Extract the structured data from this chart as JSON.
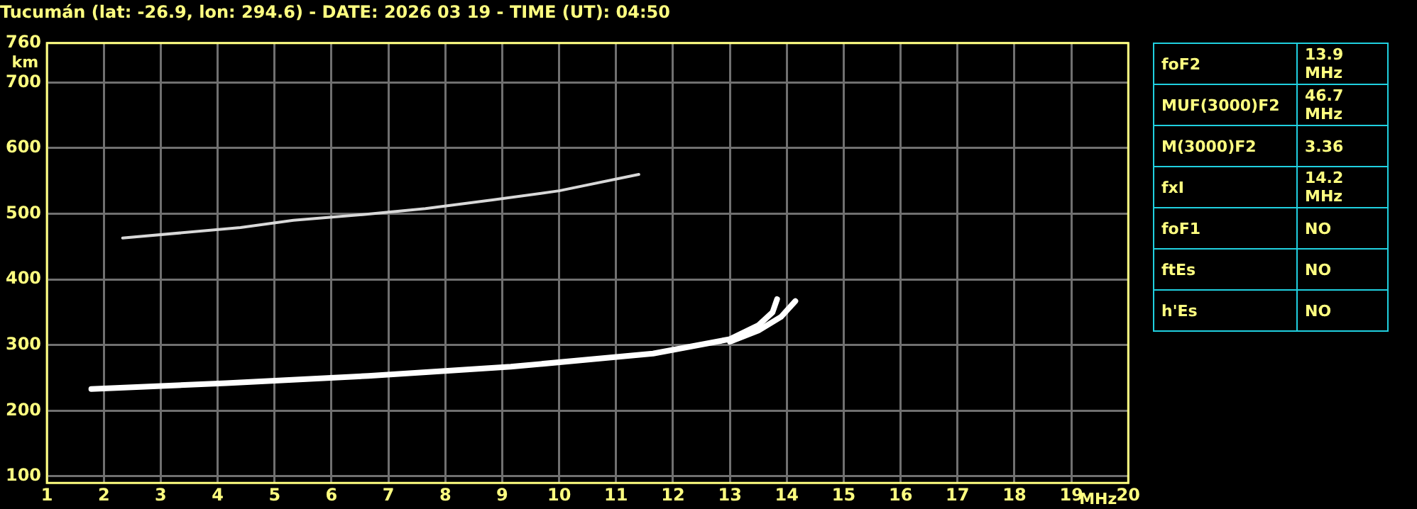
{
  "chart_data": [
    {
      "type": "line",
      "title": "Tucumán (lat: -26.9, lon: 294.6) - DATE: 2026 03 19 - TIME (UT): 04:50",
      "xlabel": "MHz",
      "ylabel": "km",
      "xlim": [
        1,
        20
      ],
      "xticks": [
        1,
        2,
        3,
        4,
        5,
        6,
        7,
        8,
        9,
        10,
        11,
        12,
        13,
        14,
        15,
        16,
        17,
        18,
        19,
        20
      ],
      "ylim": [
        90,
        760
      ],
      "yticks": [
        100,
        200,
        300,
        400,
        500,
        600,
        700,
        760
      ],
      "grid": true,
      "marker": "none",
      "line_style": "solid",
      "series": [
        {
          "color": "#ffffff",
          "x": [
            1.78,
            4.15,
            6.65,
            9.15,
            11.65,
            13.0,
            13.5,
            13.75,
            13.83
          ],
          "values": [
            233,
            242,
            253,
            267,
            287,
            309,
            330,
            350,
            370
          ]
        },
        {
          "color": "#ffffff",
          "x": [
            13.0,
            13.5,
            13.9,
            14.15
          ],
          "values": [
            305,
            322,
            343,
            367
          ]
        },
        {
          "color": "#d8d8d8",
          "x": [
            2.33,
            4.4,
            5.33,
            6.58,
            7.65,
            8.83,
            10.0,
            11.4
          ],
          "values": [
            463,
            479,
            490,
            499,
            508,
            521,
            535,
            560
          ]
        }
      ]
    },
    {
      "type": "other",
      "categories": [
        "foF2",
        "MUF(3000)F2",
        "M(3000)F2",
        "fxI",
        "foF1",
        "ftEs",
        "h'Es"
      ],
      "value_labels": [
        "13.9 MHz",
        "46.7 MHz",
        "3.36",
        "14.2 MHz",
        "NO",
        "NO",
        "NO"
      ]
    }
  ]
}
